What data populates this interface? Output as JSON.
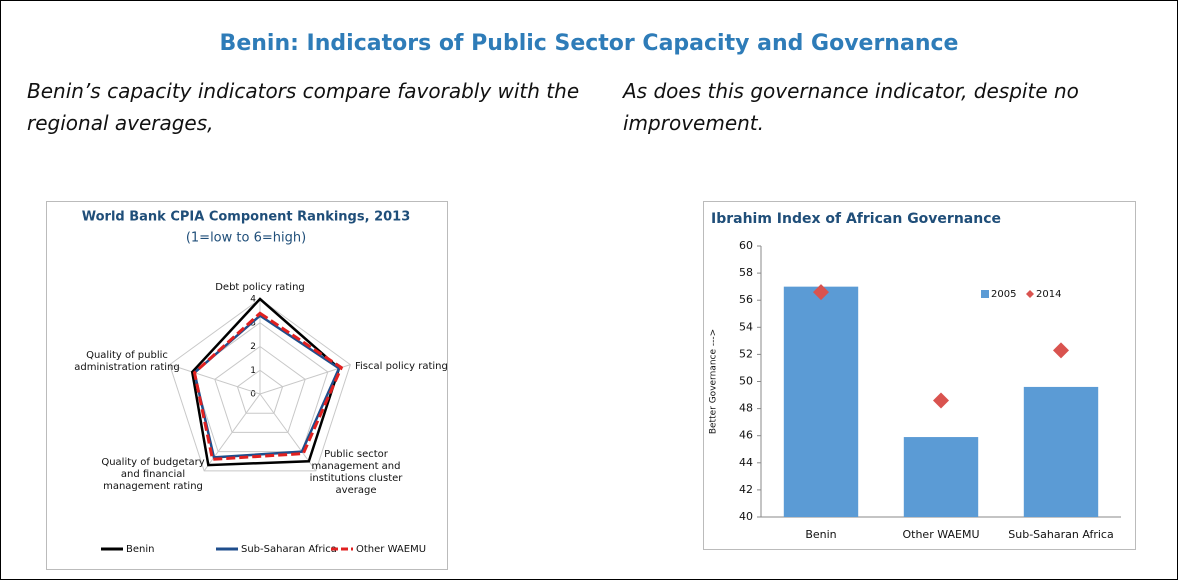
{
  "title": "Benin: Indicators of Public Sector Capacity and Governance",
  "left_caption": "Benin’s capacity indicators compare favorably with the regional averages,",
  "right_caption": "As does this governance indicator, despite no improvement.",
  "chart_data": [
    {
      "type": "radar",
      "title": "World Bank CPIA Component Rankings, 2013",
      "subtitle": "(1=low to 6=high)",
      "categories": [
        "Debt policy rating",
        "Fiscal policy rating",
        "Public sector management and institutions cluster average",
        "Quality of budgetary and financial management rating",
        "Quality of public administration rating"
      ],
      "rlim": [
        0,
        4
      ],
      "rticks": [
        0,
        1,
        2,
        3,
        4
      ],
      "grid": true,
      "legend": "bottom",
      "series": [
        {
          "name": "Benin",
          "color": "#000000",
          "line_style": "solid",
          "values": [
            4.0,
            3.5,
            3.5,
            3.7,
            3.0
          ]
        },
        {
          "name": "Sub-Saharan Africa",
          "color": "#1f4e8c",
          "line_style": "solid",
          "values": [
            3.3,
            3.5,
            3.0,
            3.3,
            2.9
          ]
        },
        {
          "name": "Other WAEMU",
          "color": "#e02020",
          "line_style": "dashed",
          "values": [
            3.4,
            3.6,
            3.1,
            3.4,
            2.9
          ]
        }
      ]
    },
    {
      "type": "bar",
      "title": "Ibrahim Index of African Governance",
      "y_label": "Better Governance --->",
      "categories": [
        "Benin",
        "Other WAEMU",
        "Sub-Saharan Africa"
      ],
      "ylim": [
        40,
        60
      ],
      "yticks": [
        40,
        42,
        44,
        46,
        48,
        50,
        52,
        54,
        56,
        58,
        60
      ],
      "legend": "upper right",
      "series": [
        {
          "name": "2005",
          "color": "#5b9bd5",
          "mark": "bar",
          "values": [
            57.0,
            45.9,
            49.6
          ]
        },
        {
          "name": "2014",
          "color": "#d9534f",
          "mark": "diamond",
          "values": [
            56.6,
            48.6,
            52.3
          ]
        }
      ]
    }
  ]
}
